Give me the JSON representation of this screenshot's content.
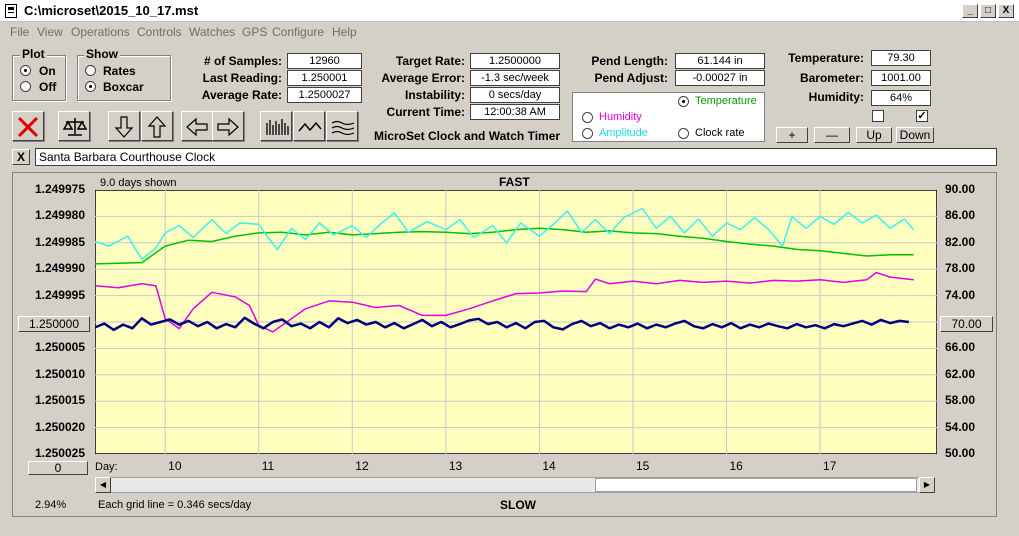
{
  "window": {
    "title": "C:\\microset\\2015_10_17.mst",
    "minimize": "_",
    "maximize": "□",
    "close": "X"
  },
  "menu": [
    "File",
    "View",
    "Operations",
    "Controls",
    "Watches",
    "GPS",
    "Configure",
    "Help"
  ],
  "plot_group": {
    "title": "Plot",
    "on": "On",
    "off": "Off",
    "selected": "On"
  },
  "show_group": {
    "title": "Show",
    "rates": "Rates",
    "boxcar": "Boxcar",
    "selected": "Boxcar"
  },
  "stats": {
    "samples_label": "# of Samples:",
    "samples_value": "12960",
    "last_reading_label": "Last Reading:",
    "last_reading_value": "1.250001",
    "average_rate_label": "Average Rate:",
    "average_rate_value": "1.2500027",
    "target_rate_label": "Target Rate:",
    "target_rate_value": "1.2500000",
    "average_error_label": "Average Error:",
    "average_error_value": "-1.3 sec/week",
    "instability_label": "Instability:",
    "instability_value": "0 secs/day",
    "current_time_label": "Current Time:",
    "current_time_value": "12:00:38 AM",
    "pend_length_label": "Pend Length:",
    "pend_length_value": "61.144 in",
    "pend_adjust_label": "Pend Adjust:",
    "pend_adjust_value": "-0.00027 in",
    "temperature_label": "Temperature:",
    "temperature_value": "79.30",
    "barometer_label": "Barometer:",
    "barometer_value": "1001.00",
    "humidity_label": "Humidity:",
    "humidity_value": "64%"
  },
  "app_caption": "MicroSet Clock and Watch Timer",
  "aux_plot": {
    "temperature": "Temperature",
    "humidity": "Humidity",
    "amplitude": "Amplitude",
    "clock_rate": "Clock rate",
    "selected": "Temperature"
  },
  "aux_checkboxes": [
    false,
    true
  ],
  "adjust_buttons": {
    "plus": "+",
    "minus": "—",
    "up": "Up",
    "down": "Down"
  },
  "clock_name": {
    "clear": "X",
    "value": "Santa Barbara Courthouse Clock"
  },
  "chart": {
    "days_shown": "9.0 days shown",
    "top_label": "FAST",
    "bottom_label": "SLOW",
    "left_center_value": "1.250000",
    "right_center_value": "70.00",
    "bottom_left_value": "0",
    "day_label": "Day:",
    "zoom_percent": "2.94%",
    "grid_note": "Each grid line = 0.346 secs/day"
  },
  "colors": {
    "plot_bg": "#ffffc0",
    "clock_rate": "#00007f",
    "temperature": "#00c000",
    "humidity": "#e000e0",
    "amplitude": "#3cf0f0"
  },
  "chart_data": {
    "type": "line",
    "x_label": "Day:",
    "x_ticks": [
      10,
      11,
      12,
      13,
      14,
      15,
      16,
      17
    ],
    "x_range": [
      9.25,
      18.25
    ],
    "y_left": {
      "ticks": [
        "1.249975",
        "1.249980",
        "1.249985",
        "1.249990",
        "1.249995",
        "1.250000",
        "1.250005",
        "1.250010",
        "1.250015",
        "1.250020",
        "1.250025"
      ],
      "range": [
        1.249975,
        1.250025
      ],
      "inverted": true
    },
    "y_right": {
      "ticks": [
        "90.00",
        "86.00",
        "82.00",
        "78.00",
        "74.00",
        "70.00",
        "66.00",
        "62.00",
        "58.00",
        "54.00",
        "50.00"
      ],
      "range": [
        50,
        90
      ]
    },
    "series": [
      {
        "name": "Temperature",
        "axis": "right",
        "color": "#00c000",
        "points": [
          [
            9.25,
            78.8
          ],
          [
            9.75,
            79.0
          ],
          [
            10.0,
            81.5
          ],
          [
            10.25,
            82.4
          ],
          [
            10.5,
            82.2
          ],
          [
            10.75,
            83.0
          ],
          [
            11.0,
            83.5
          ],
          [
            11.25,
            83.6
          ],
          [
            11.5,
            83.2
          ],
          [
            11.75,
            83.6
          ],
          [
            12.0,
            83.2
          ],
          [
            12.25,
            83.4
          ],
          [
            12.5,
            83.6
          ],
          [
            12.75,
            83.7
          ],
          [
            13.0,
            83.6
          ],
          [
            13.25,
            83.4
          ],
          [
            13.5,
            83.6
          ],
          [
            13.75,
            84.0
          ],
          [
            14.0,
            84.2
          ],
          [
            14.25,
            84.0
          ],
          [
            14.5,
            83.6
          ],
          [
            14.75,
            83.8
          ],
          [
            15.0,
            83.5
          ],
          [
            15.25,
            83.4
          ],
          [
            15.5,
            83.0
          ],
          [
            15.75,
            82.7
          ],
          [
            16.0,
            82.2
          ],
          [
            16.25,
            81.8
          ],
          [
            16.5,
            81.5
          ],
          [
            16.75,
            81.0
          ],
          [
            17.0,
            80.8
          ],
          [
            17.25,
            80.4
          ],
          [
            17.5,
            80.0
          ],
          [
            17.75,
            80.2
          ],
          [
            18.0,
            80.2
          ]
        ]
      },
      {
        "name": "Humidity",
        "axis": "right",
        "color": "#e000e0",
        "points": [
          [
            9.25,
            75.5
          ],
          [
            9.5,
            75.2
          ],
          [
            9.75,
            75.8
          ],
          [
            9.9,
            75.5
          ],
          [
            10.0,
            70.5
          ],
          [
            10.15,
            69.0
          ],
          [
            10.3,
            72.0
          ],
          [
            10.5,
            74.5
          ],
          [
            10.75,
            73.8
          ],
          [
            10.9,
            72.5
          ],
          [
            11.0,
            69.5
          ],
          [
            11.15,
            68.5
          ],
          [
            11.3,
            70.0
          ],
          [
            11.5,
            72.0
          ],
          [
            11.75,
            73.2
          ],
          [
            12.0,
            73.0
          ],
          [
            12.25,
            72.2
          ],
          [
            12.5,
            72.5
          ],
          [
            12.75,
            71.0
          ],
          [
            13.0,
            71.0
          ],
          [
            13.25,
            72.0
          ],
          [
            13.5,
            73.2
          ],
          [
            13.75,
            74.3
          ],
          [
            14.0,
            74.4
          ],
          [
            14.25,
            74.7
          ],
          [
            14.5,
            74.6
          ],
          [
            14.6,
            76.5
          ],
          [
            14.75,
            75.8
          ],
          [
            15.0,
            76.2
          ],
          [
            15.25,
            75.8
          ],
          [
            15.5,
            76.3
          ],
          [
            15.75,
            76.0
          ],
          [
            16.0,
            76.2
          ],
          [
            16.25,
            75.9
          ],
          [
            16.5,
            76.3
          ],
          [
            16.75,
            76.2
          ],
          [
            17.0,
            76.4
          ],
          [
            17.25,
            76.0
          ],
          [
            17.5,
            76.4
          ],
          [
            17.6,
            77.5
          ],
          [
            17.75,
            76.8
          ],
          [
            18.0,
            76.4
          ]
        ]
      },
      {
        "name": "Amplitude",
        "axis": "right",
        "color": "#3cf0f0",
        "points": [
          [
            9.25,
            82.2
          ],
          [
            9.4,
            81.5
          ],
          [
            9.6,
            83.0
          ],
          [
            9.75,
            79.5
          ],
          [
            9.9,
            81.2
          ],
          [
            10.0,
            83.5
          ],
          [
            10.15,
            84.6
          ],
          [
            10.3,
            82.8
          ],
          [
            10.5,
            85.5
          ],
          [
            10.65,
            83.4
          ],
          [
            10.8,
            85.0
          ],
          [
            11.0,
            84.8
          ],
          [
            11.1,
            82.8
          ],
          [
            11.2,
            81.0
          ],
          [
            11.35,
            84.2
          ],
          [
            11.5,
            82.5
          ],
          [
            11.65,
            85.0
          ],
          [
            11.8,
            83.2
          ],
          [
            12.0,
            84.6
          ],
          [
            12.15,
            82.8
          ],
          [
            12.3,
            84.8
          ],
          [
            12.45,
            86.5
          ],
          [
            12.6,
            83.6
          ],
          [
            12.8,
            85.2
          ],
          [
            13.0,
            84.0
          ],
          [
            13.15,
            85.5
          ],
          [
            13.3,
            82.8
          ],
          [
            13.5,
            84.6
          ],
          [
            13.65,
            82.0
          ],
          [
            13.8,
            85.0
          ],
          [
            14.0,
            83.0
          ],
          [
            14.15,
            84.8
          ],
          [
            14.3,
            86.8
          ],
          [
            14.45,
            83.6
          ],
          [
            14.6,
            85.5
          ],
          [
            14.75,
            83.4
          ],
          [
            14.9,
            85.8
          ],
          [
            15.1,
            87.2
          ],
          [
            15.25,
            84.2
          ],
          [
            15.4,
            86.0
          ],
          [
            15.55,
            83.5
          ],
          [
            15.7,
            85.6
          ],
          [
            15.85,
            83.0
          ],
          [
            16.0,
            85.0
          ],
          [
            16.15,
            84.0
          ],
          [
            16.3,
            85.8
          ],
          [
            16.45,
            84.0
          ],
          [
            16.6,
            81.5
          ],
          [
            16.7,
            86.0
          ],
          [
            16.85,
            84.2
          ],
          [
            17.0,
            86.0
          ],
          [
            17.15,
            84.8
          ],
          [
            17.3,
            86.6
          ],
          [
            17.45,
            85.0
          ],
          [
            17.6,
            86.2
          ],
          [
            17.75,
            84.2
          ],
          [
            17.9,
            85.6
          ],
          [
            18.0,
            84.0
          ]
        ]
      },
      {
        "name": "Clock rate",
        "axis": "left",
        "color": "#00007f",
        "points": [
          [
            9.25,
            1.250001
          ],
          [
            9.35,
            1.2500003
          ],
          [
            9.45,
            1.2500015
          ],
          [
            9.55,
            1.2500005
          ],
          [
            9.65,
            1.2500012
          ],
          [
            9.75,
            1.2499993
          ],
          [
            9.85,
            1.2500005
          ],
          [
            9.95,
            1.25
          ],
          [
            10.05,
            1.2499995
          ],
          [
            10.15,
            1.2500005
          ],
          [
            10.25,
            1.2499998
          ],
          [
            10.35,
            1.2500008
          ],
          [
            10.45,
            1.25
          ],
          [
            10.55,
            1.2500012
          ],
          [
            10.65,
            1.2500004
          ],
          [
            10.75,
            1.250001
          ],
          [
            10.85,
            1.2499992
          ],
          [
            10.95,
            1.2500003
          ],
          [
            11.05,
            1.2500012
          ],
          [
            11.15,
            1.25
          ],
          [
            11.25,
            1.2499995
          ],
          [
            11.35,
            1.2500008
          ],
          [
            11.45,
            1.2500003
          ],
          [
            11.55,
            1.2500012
          ],
          [
            11.65,
            1.25
          ],
          [
            11.75,
            1.250001
          ],
          [
            11.85,
            1.2499993
          ],
          [
            11.95,
            1.2500002
          ],
          [
            12.05,
            1.2499996
          ],
          [
            12.15,
            1.2500005
          ],
          [
            12.25,
            1.25
          ],
          [
            12.35,
            1.250001
          ],
          [
            12.45,
            1.2500002
          ],
          [
            12.55,
            1.2500012
          ],
          [
            12.65,
            1.2500004
          ],
          [
            12.75,
            1.2499996
          ],
          [
            12.85,
            1.2500008
          ],
          [
            12.95,
            1.25
          ],
          [
            13.05,
            1.250001
          ],
          [
            13.15,
            1.2500004
          ],
          [
            13.25,
            1.2499997
          ],
          [
            13.35,
            1.2499994
          ],
          [
            13.45,
            1.2500004
          ],
          [
            13.55,
            1.25
          ],
          [
            13.65,
            1.250001
          ],
          [
            13.75,
            1.2500002
          ],
          [
            13.85,
            1.2500012
          ],
          [
            13.95,
            1.25
          ],
          [
            14.05,
            1.2499998
          ],
          [
            14.15,
            1.250001
          ],
          [
            14.25,
            1.2500014
          ],
          [
            14.35,
            1.2500004
          ],
          [
            14.45,
            1.2499998
          ],
          [
            14.55,
            1.2500008
          ],
          [
            14.65,
            1.2500002
          ],
          [
            14.75,
            1.2500012
          ],
          [
            14.85,
            1.2500005
          ],
          [
            14.95,
            1.250001
          ],
          [
            15.05,
            1.2500003
          ],
          [
            15.15,
            1.2500012
          ],
          [
            15.25,
            1.2500005
          ],
          [
            15.35,
            1.250001
          ],
          [
            15.45,
            1.2500003
          ],
          [
            15.55,
            1.2499998
          ],
          [
            15.65,
            1.2500008
          ],
          [
            15.75,
            1.2500012
          ],
          [
            15.85,
            1.2500004
          ],
          [
            15.95,
            1.250001
          ],
          [
            16.05,
            1.2500002
          ],
          [
            16.15,
            1.2500012
          ],
          [
            16.25,
            1.2500005
          ],
          [
            16.35,
            1.250001
          ],
          [
            16.45,
            1.2500003
          ],
          [
            16.55,
            1.2500008
          ],
          [
            16.65,
            1.2500012
          ],
          [
            16.75,
            1.2500004
          ],
          [
            16.85,
            1.250001
          ],
          [
            16.95,
            1.2500006
          ],
          [
            17.05,
            1.2500012
          ],
          [
            17.15,
            1.2500004
          ],
          [
            17.25,
            1.2500008
          ],
          [
            17.35,
            1.2500003
          ],
          [
            17.45,
            1.2499998
          ],
          [
            17.55,
            1.2500005
          ],
          [
            17.65,
            1.2499996
          ],
          [
            17.75,
            1.2500002
          ],
          [
            17.85,
            1.2499998
          ],
          [
            17.95,
            1.25
          ]
        ]
      }
    ]
  }
}
